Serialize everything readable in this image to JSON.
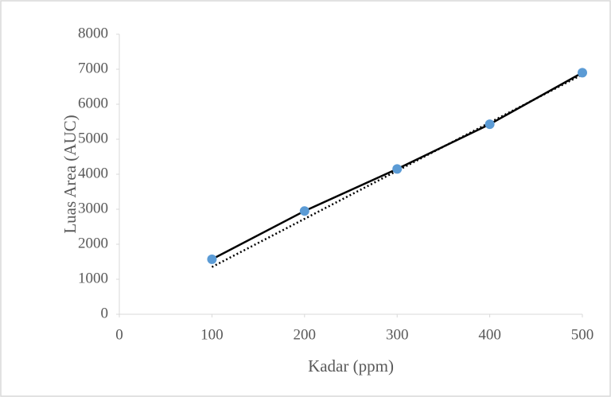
{
  "chart_data": {
    "type": "scatter",
    "x_label": "Kadar (ppm)",
    "y_label": "Luas Area (AUC)",
    "x": [
      100,
      200,
      300,
      400,
      500
    ],
    "series": [
      {
        "color": "#5b9bd5",
        "line_color": "#000000",
        "values": [
          1570,
          2950,
          4150,
          5430,
          6900
        ]
      }
    ],
    "trendline": {
      "color": "#000000",
      "x": [
        100,
        500
      ],
      "values": [
        1350,
        6850
      ]
    },
    "xlim": [
      0,
      500
    ],
    "xticks": [
      0,
      100,
      200,
      300,
      400,
      500
    ],
    "ylim": [
      0,
      8000
    ],
    "yticks": [
      0,
      1000,
      2000,
      3000,
      4000,
      5000,
      6000,
      7000,
      8000
    ],
    "grid": false
  }
}
